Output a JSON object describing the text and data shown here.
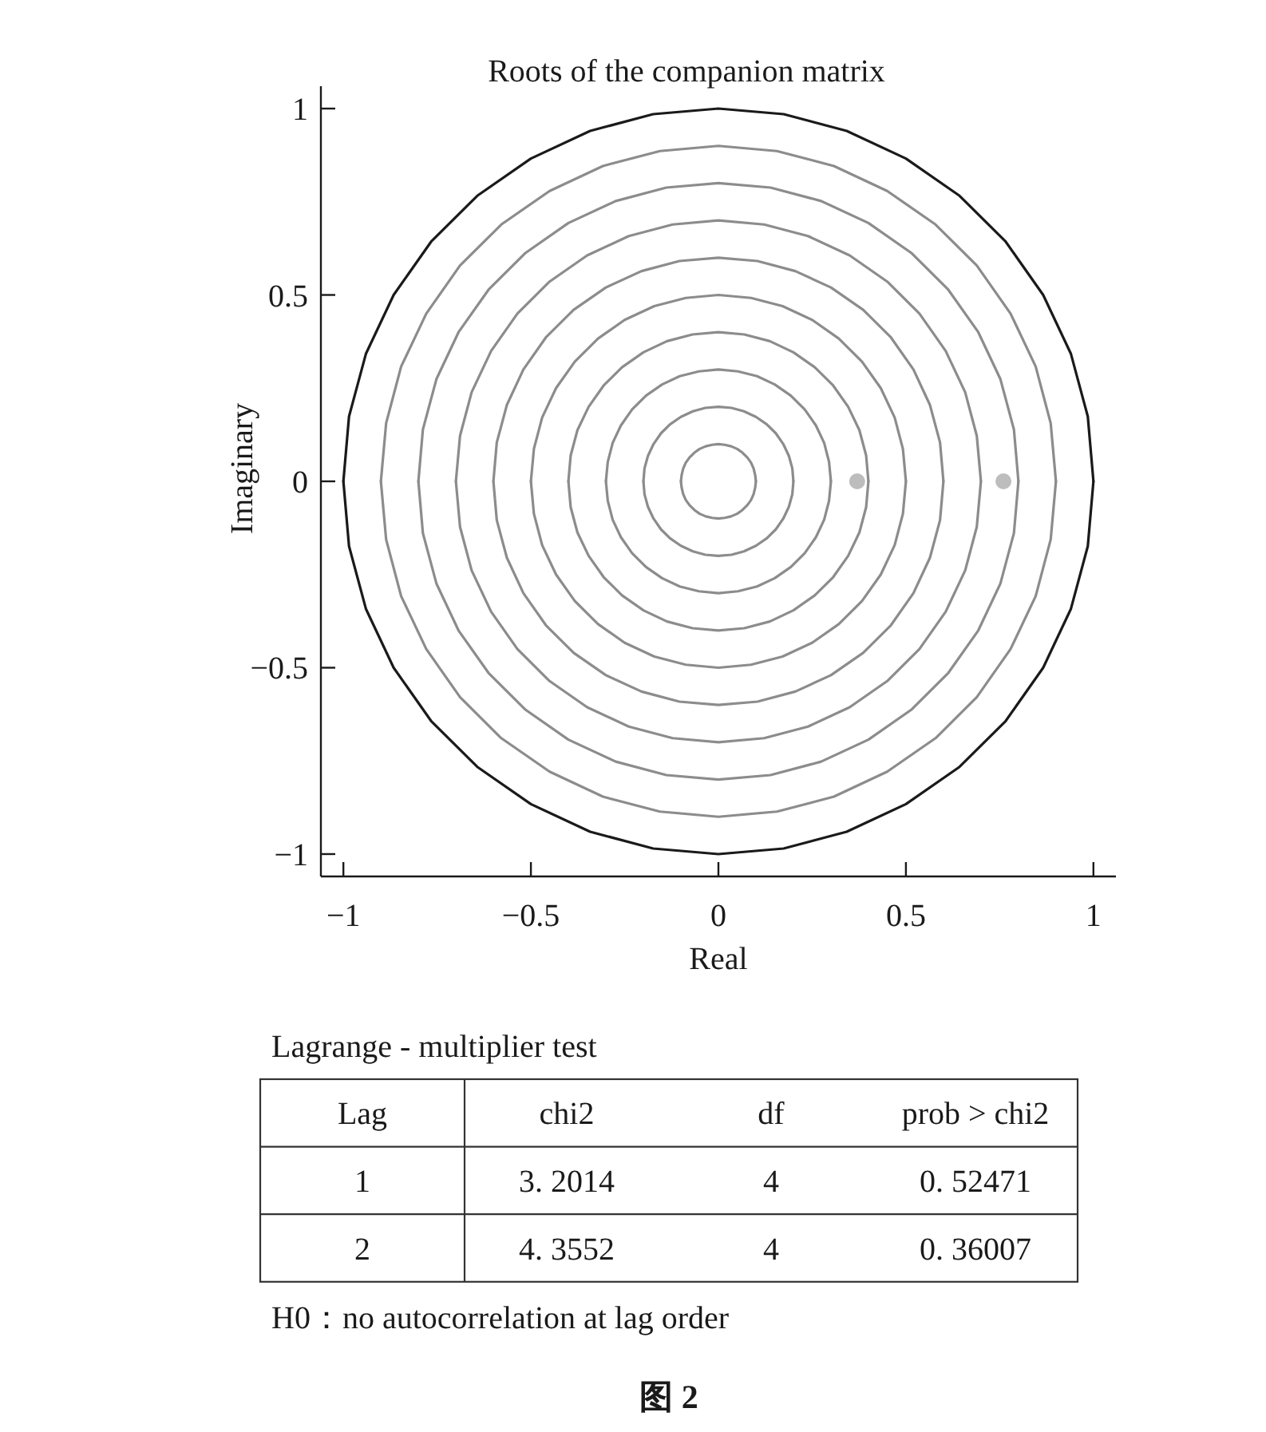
{
  "chart_data": [
    {
      "type": "scatter",
      "title": "Roots of the companion matrix",
      "xlabel": "Real",
      "ylabel": "Imaginary",
      "xlim": [
        -1.06,
        1.06
      ],
      "ylim": [
        -1.06,
        1.06
      ],
      "xticks": [
        {
          "value": -1,
          "label": "−1"
        },
        {
          "value": -0.5,
          "label": "−0.5"
        },
        0,
        0.5,
        1
      ],
      "yticks": [
        {
          "value": -1,
          "label": "−1"
        },
        {
          "value": -0.5,
          "label": "−0.5"
        },
        0,
        0.5,
        1
      ],
      "series": [
        {
          "type": "line",
          "color": "#8c8c8c",
          "x": [
            -0.1,
            -0.098,
            -0.094,
            -0.087,
            -0.077,
            -0.064,
            -0.05,
            -0.034,
            -0.017,
            0,
            0.017,
            0.034,
            0.05,
            0.064,
            0.077,
            0.087,
            0.094,
            0.098,
            0.1
          ],
          "values": [
            0,
            0.017,
            0.034,
            0.05,
            0.064,
            0.077,
            0.087,
            0.094,
            0.098,
            0.1,
            0.098,
            0.094,
            0.087,
            0.077,
            0.064,
            0.05,
            0.034,
            0.017,
            0
          ]
        },
        {
          "type": "line",
          "color": "#8c8c8c",
          "x": [
            -0.1,
            -0.098,
            -0.094,
            -0.087,
            -0.077,
            -0.064,
            -0.05,
            -0.034,
            -0.017,
            0,
            0.017,
            0.034,
            0.05,
            0.064,
            0.077,
            0.087,
            0.094,
            0.098,
            0.1
          ],
          "values": [
            0,
            -0.017,
            -0.034,
            -0.05,
            -0.064,
            -0.077,
            -0.087,
            -0.094,
            -0.098,
            -0.1,
            -0.098,
            -0.094,
            -0.087,
            -0.077,
            -0.064,
            -0.05,
            -0.034,
            -0.017,
            0
          ]
        },
        {
          "type": "line",
          "color": "#8c8c8c",
          "x": [
            -0.2,
            -0.197,
            -0.188,
            -0.173,
            -0.153,
            -0.129,
            -0.1,
            -0.068,
            -0.035,
            0,
            0.035,
            0.068,
            0.1,
            0.129,
            0.153,
            0.173,
            0.188,
            0.197,
            0.2
          ],
          "values": [
            0,
            0.035,
            0.068,
            0.1,
            0.129,
            0.153,
            0.173,
            0.188,
            0.197,
            0.2,
            0.197,
            0.188,
            0.173,
            0.153,
            0.129,
            0.1,
            0.068,
            0.035,
            0
          ]
        },
        {
          "type": "line",
          "color": "#8c8c8c",
          "x": [
            -0.2,
            -0.197,
            -0.188,
            -0.173,
            -0.153,
            -0.129,
            -0.1,
            -0.068,
            -0.035,
            0,
            0.035,
            0.068,
            0.1,
            0.129,
            0.153,
            0.173,
            0.188,
            0.197,
            0.2
          ],
          "values": [
            0,
            -0.035,
            -0.068,
            -0.1,
            -0.129,
            -0.153,
            -0.173,
            -0.188,
            -0.197,
            -0.2,
            -0.197,
            -0.188,
            -0.173,
            -0.153,
            -0.129,
            -0.1,
            -0.068,
            -0.035,
            0
          ]
        },
        {
          "type": "line",
          "color": "#8c8c8c",
          "x": [
            -0.3,
            -0.295,
            -0.282,
            -0.26,
            -0.23,
            -0.193,
            -0.15,
            -0.103,
            -0.052,
            0,
            0.052,
            0.103,
            0.15,
            0.193,
            0.23,
            0.26,
            0.282,
            0.295,
            0.3
          ],
          "values": [
            0,
            0.052,
            0.103,
            0.15,
            0.193,
            0.23,
            0.26,
            0.282,
            0.295,
            0.3,
            0.295,
            0.282,
            0.26,
            0.23,
            0.193,
            0.15,
            0.103,
            0.052,
            0
          ]
        },
        {
          "type": "line",
          "color": "#8c8c8c",
          "x": [
            -0.3,
            -0.295,
            -0.282,
            -0.26,
            -0.23,
            -0.193,
            -0.15,
            -0.103,
            -0.052,
            0,
            0.052,
            0.103,
            0.15,
            0.193,
            0.23,
            0.26,
            0.282,
            0.295,
            0.3
          ],
          "values": [
            0,
            -0.052,
            -0.103,
            -0.15,
            -0.193,
            -0.23,
            -0.26,
            -0.282,
            -0.295,
            -0.3,
            -0.295,
            -0.282,
            -0.26,
            -0.23,
            -0.193,
            -0.15,
            -0.103,
            -0.052,
            0
          ]
        },
        {
          "type": "line",
          "color": "#8c8c8c",
          "x": [
            -0.4,
            -0.394,
            -0.376,
            -0.346,
            -0.306,
            -0.257,
            -0.2,
            -0.137,
            -0.069,
            0,
            0.069,
            0.137,
            0.2,
            0.257,
            0.306,
            0.346,
            0.376,
            0.394,
            0.4
          ],
          "values": [
            0,
            0.069,
            0.137,
            0.2,
            0.257,
            0.306,
            0.346,
            0.376,
            0.394,
            0.4,
            0.394,
            0.376,
            0.346,
            0.306,
            0.257,
            0.2,
            0.137,
            0.069,
            0
          ]
        },
        {
          "type": "line",
          "color": "#8c8c8c",
          "x": [
            -0.4,
            -0.394,
            -0.376,
            -0.346,
            -0.306,
            -0.257,
            -0.2,
            -0.137,
            -0.069,
            0,
            0.069,
            0.137,
            0.2,
            0.257,
            0.306,
            0.346,
            0.376,
            0.394,
            0.4
          ],
          "values": [
            0,
            -0.069,
            -0.137,
            -0.2,
            -0.257,
            -0.306,
            -0.346,
            -0.376,
            -0.394,
            -0.4,
            -0.394,
            -0.376,
            -0.346,
            -0.306,
            -0.257,
            -0.2,
            -0.137,
            -0.069,
            0
          ]
        },
        {
          "type": "line",
          "color": "#8c8c8c",
          "x": [
            -0.5,
            -0.492,
            -0.47,
            -0.433,
            -0.383,
            -0.321,
            -0.25,
            -0.171,
            -0.087,
            0,
            0.087,
            0.171,
            0.25,
            0.321,
            0.383,
            0.433,
            0.47,
            0.492,
            0.5
          ],
          "values": [
            0,
            0.087,
            0.171,
            0.25,
            0.321,
            0.383,
            0.433,
            0.47,
            0.492,
            0.5,
            0.492,
            0.47,
            0.433,
            0.383,
            0.321,
            0.25,
            0.171,
            0.087,
            0
          ]
        },
        {
          "type": "line",
          "color": "#8c8c8c",
          "x": [
            -0.5,
            -0.492,
            -0.47,
            -0.433,
            -0.383,
            -0.321,
            -0.25,
            -0.171,
            -0.087,
            0,
            0.087,
            0.171,
            0.25,
            0.321,
            0.383,
            0.433,
            0.47,
            0.492,
            0.5
          ],
          "values": [
            0,
            -0.087,
            -0.171,
            -0.25,
            -0.321,
            -0.383,
            -0.433,
            -0.47,
            -0.492,
            -0.5,
            -0.492,
            -0.47,
            -0.433,
            -0.383,
            -0.321,
            -0.25,
            -0.171,
            -0.087,
            0
          ]
        },
        {
          "type": "line",
          "color": "#8c8c8c",
          "x": [
            -0.6,
            -0.591,
            -0.564,
            -0.52,
            -0.46,
            -0.386,
            -0.3,
            -0.205,
            -0.104,
            0,
            0.104,
            0.205,
            0.3,
            0.386,
            0.46,
            0.52,
            0.564,
            0.591,
            0.6
          ],
          "values": [
            0,
            0.104,
            0.205,
            0.3,
            0.386,
            0.46,
            0.52,
            0.564,
            0.591,
            0.6,
            0.591,
            0.564,
            0.52,
            0.46,
            0.386,
            0.3,
            0.205,
            0.104,
            0
          ]
        },
        {
          "type": "line",
          "color": "#8c8c8c",
          "x": [
            -0.6,
            -0.591,
            -0.564,
            -0.52,
            -0.46,
            -0.386,
            -0.3,
            -0.205,
            -0.104,
            0,
            0.104,
            0.205,
            0.3,
            0.386,
            0.46,
            0.52,
            0.564,
            0.591,
            0.6
          ],
          "values": [
            0,
            -0.104,
            -0.205,
            -0.3,
            -0.386,
            -0.46,
            -0.52,
            -0.564,
            -0.591,
            -0.6,
            -0.591,
            -0.564,
            -0.52,
            -0.46,
            -0.386,
            -0.3,
            -0.205,
            -0.104,
            0
          ]
        },
        {
          "type": "line",
          "color": "#8c8c8c",
          "x": [
            -0.7,
            -0.689,
            -0.658,
            -0.606,
            -0.536,
            -0.45,
            -0.35,
            -0.239,
            -0.122,
            0,
            0.122,
            0.239,
            0.35,
            0.45,
            0.536,
            0.606,
            0.658,
            0.689,
            0.7
          ],
          "values": [
            0,
            0.122,
            0.239,
            0.35,
            0.45,
            0.536,
            0.606,
            0.658,
            0.689,
            0.7,
            0.689,
            0.658,
            0.606,
            0.536,
            0.45,
            0.35,
            0.239,
            0.122,
            0
          ]
        },
        {
          "type": "line",
          "color": "#8c8c8c",
          "x": [
            -0.7,
            -0.689,
            -0.658,
            -0.606,
            -0.536,
            -0.45,
            -0.35,
            -0.239,
            -0.122,
            0,
            0.122,
            0.239,
            0.35,
            0.45,
            0.536,
            0.606,
            0.658,
            0.689,
            0.7
          ],
          "values": [
            0,
            -0.122,
            -0.239,
            -0.35,
            -0.45,
            -0.536,
            -0.606,
            -0.658,
            -0.689,
            -0.7,
            -0.689,
            -0.658,
            -0.606,
            -0.536,
            -0.45,
            -0.35,
            -0.239,
            -0.122,
            0
          ]
        },
        {
          "type": "line",
          "color": "#8c8c8c",
          "x": [
            -0.8,
            -0.788,
            -0.752,
            -0.693,
            -0.613,
            -0.514,
            -0.4,
            -0.274,
            -0.139,
            0,
            0.139,
            0.274,
            0.4,
            0.514,
            0.613,
            0.693,
            0.752,
            0.788,
            0.8
          ],
          "values": [
            0,
            0.139,
            0.274,
            0.4,
            0.514,
            0.613,
            0.693,
            0.752,
            0.788,
            0.8,
            0.788,
            0.752,
            0.693,
            0.613,
            0.514,
            0.4,
            0.274,
            0.139,
            0
          ]
        },
        {
          "type": "line",
          "color": "#8c8c8c",
          "x": [
            -0.8,
            -0.788,
            -0.752,
            -0.693,
            -0.613,
            -0.514,
            -0.4,
            -0.274,
            -0.139,
            0,
            0.139,
            0.274,
            0.4,
            0.514,
            0.613,
            0.693,
            0.752,
            0.788,
            0.8
          ],
          "values": [
            0,
            -0.139,
            -0.274,
            -0.4,
            -0.514,
            -0.613,
            -0.693,
            -0.752,
            -0.788,
            -0.8,
            -0.788,
            -0.752,
            -0.693,
            -0.613,
            -0.514,
            -0.4,
            -0.274,
            -0.139,
            0
          ]
        },
        {
          "type": "line",
          "color": "#8c8c8c",
          "x": [
            -0.9,
            -0.886,
            -0.846,
            -0.779,
            -0.689,
            -0.579,
            -0.45,
            -0.308,
            -0.156,
            0,
            0.156,
            0.308,
            0.45,
            0.579,
            0.689,
            0.779,
            0.846,
            0.886,
            0.9
          ],
          "values": [
            0,
            0.156,
            0.308,
            0.45,
            0.579,
            0.689,
            0.779,
            0.846,
            0.886,
            0.9,
            0.886,
            0.846,
            0.779,
            0.689,
            0.579,
            0.45,
            0.308,
            0.156,
            0
          ]
        },
        {
          "type": "line",
          "color": "#8c8c8c",
          "x": [
            -0.9,
            -0.886,
            -0.846,
            -0.779,
            -0.689,
            -0.579,
            -0.45,
            -0.308,
            -0.156,
            0,
            0.156,
            0.308,
            0.45,
            0.579,
            0.689,
            0.779,
            0.846,
            0.886,
            0.9
          ],
          "values": [
            0,
            -0.156,
            -0.308,
            -0.45,
            -0.579,
            -0.689,
            -0.779,
            -0.846,
            -0.886,
            -0.9,
            -0.886,
            -0.846,
            -0.779,
            -0.689,
            -0.579,
            -0.45,
            -0.308,
            -0.156,
            0
          ]
        },
        {
          "type": "line",
          "color": "#1a1a1a",
          "x": [
            -1,
            -0.985,
            -0.94,
            -0.866,
            -0.766,
            -0.643,
            -0.5,
            -0.342,
            -0.174,
            0,
            0.174,
            0.342,
            0.5,
            0.643,
            0.766,
            0.866,
            0.94,
            0.985,
            1
          ],
          "values": [
            0,
            0.174,
            0.342,
            0.5,
            0.643,
            0.766,
            0.866,
            0.94,
            0.985,
            1,
            0.985,
            0.94,
            0.866,
            0.766,
            0.643,
            0.5,
            0.342,
            0.174,
            0
          ]
        },
        {
          "type": "line",
          "color": "#1a1a1a",
          "x": [
            -1,
            -0.985,
            -0.94,
            -0.866,
            -0.766,
            -0.643,
            -0.5,
            -0.342,
            -0.174,
            0,
            0.174,
            0.342,
            0.5,
            0.643,
            0.766,
            0.866,
            0.94,
            0.985,
            1
          ],
          "values": [
            0,
            -0.174,
            -0.342,
            -0.5,
            -0.643,
            -0.766,
            -0.866,
            -0.94,
            -0.985,
            -1,
            -0.985,
            -0.94,
            -0.866,
            -0.766,
            -0.643,
            -0.5,
            -0.342,
            -0.174,
            0
          ]
        },
        {
          "type": "scatter",
          "color": "#bdbdbd",
          "marker": "circle",
          "x": [
            0.37,
            0.76
          ],
          "values": [
            0,
            0
          ]
        }
      ]
    },
    {
      "type": "other",
      "title": "Lagrange - multiplier test",
      "categories": [
        "Lag",
        "chi2",
        "df",
        "prob > chi2"
      ],
      "cell_labels": [
        [
          "1",
          "3. 2014",
          "4",
          "0. 52471"
        ],
        [
          "2",
          "4. 3552",
          "4",
          "0. 36007"
        ]
      ],
      "annotations": [
        "H0：no autocorrelation at lag order",
        "图 2"
      ]
    }
  ]
}
